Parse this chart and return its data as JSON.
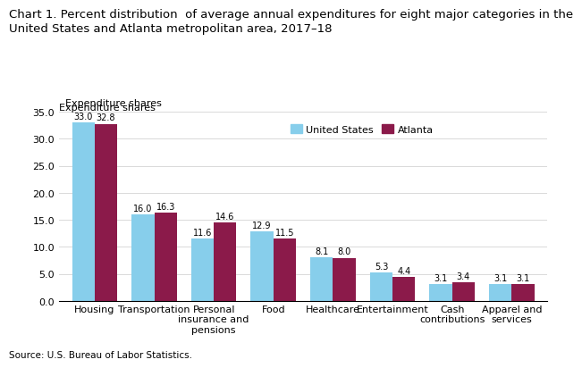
{
  "title_line1": "Chart 1. Percent distribution  of average annual expenditures for eight major categories in the",
  "title_line2": "United States and Atlanta metropolitan area, 2017–18",
  "ylabel": "Expenditure shares",
  "source": "Source: U.S. Bureau of Labor Statistics.",
  "categories": [
    "Housing",
    "Transportation",
    "Personal\ninsurance and\npensions",
    "Food",
    "Healthcare",
    "Entertainment",
    "Cash\ncontributions",
    "Apparel and\nservices"
  ],
  "us_values": [
    33.0,
    16.0,
    11.6,
    12.9,
    8.1,
    5.3,
    3.1,
    3.1
  ],
  "atl_values": [
    32.8,
    16.3,
    14.6,
    11.5,
    8.0,
    4.4,
    3.4,
    3.1
  ],
  "us_color": "#87CEEB",
  "atl_color": "#8B1A4A",
  "ylim": [
    0,
    35.0
  ],
  "yticks": [
    0.0,
    5.0,
    10.0,
    15.0,
    20.0,
    25.0,
    30.0,
    35.0
  ],
  "legend_us": "United States",
  "legend_atl": "Atlanta",
  "bar_width": 0.38,
  "title_fontsize": 9.5,
  "axis_label_fontsize": 8,
  "tick_fontsize": 8,
  "value_fontsize": 7,
  "source_fontsize": 7.5
}
